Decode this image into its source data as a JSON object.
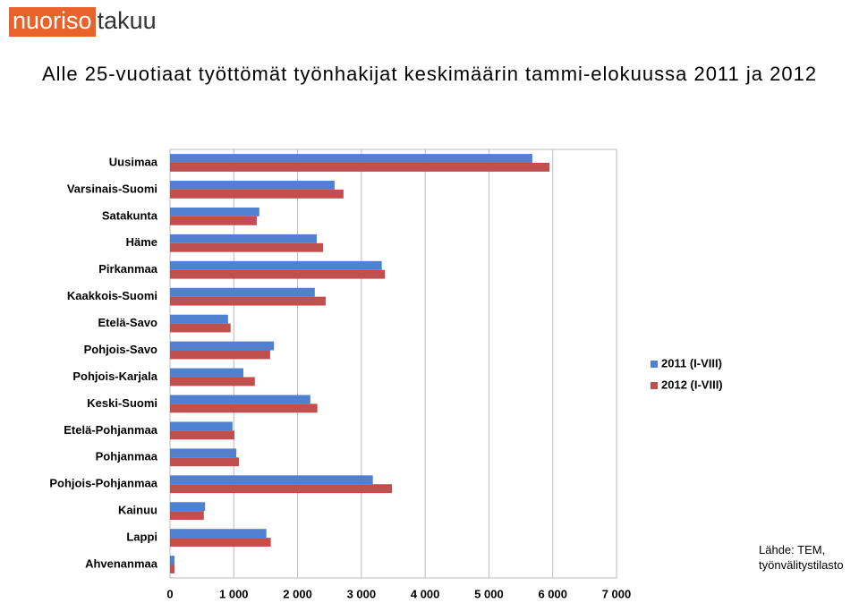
{
  "logo": {
    "part1": "nuoriso",
    "part2": "takuu"
  },
  "source": [
    "Lähde: TEM,",
    "työnvälitystilasto"
  ],
  "chart_data": {
    "type": "bar",
    "orientation": "horizontal",
    "title": "Alle 25-vuotiaat työttömät työnhakijat keskimäärin tammi-elokuussa 2011 ja 2012",
    "categories": [
      "Uusimaa",
      "Varsinais-Suomi",
      "Satakunta",
      "Häme",
      "Pirkanmaa",
      "Kaakkois-Suomi",
      "Etelä-Savo",
      "Pohjois-Savo",
      "Pohjois-Karjala",
      "Keski-Suomi",
      "Etelä-Pohjanmaa",
      "Pohjanmaa",
      "Pohjois-Pohjanmaa",
      "Kainuu",
      "Lappi",
      "Ahvenanmaa"
    ],
    "series": [
      {
        "name": "2011 (I-VIII)",
        "color": "#4f81d0",
        "values": [
          5680,
          2580,
          1400,
          2300,
          3320,
          2270,
          910,
          1630,
          1150,
          2200,
          980,
          1040,
          3180,
          550,
          1510,
          70
        ]
      },
      {
        "name": "2012 (I-VIII)",
        "color": "#c0504d",
        "values": [
          5950,
          2720,
          1360,
          2400,
          3370,
          2440,
          950,
          1570,
          1330,
          2310,
          1010,
          1080,
          3480,
          530,
          1580,
          70
        ]
      }
    ],
    "xlim": [
      0,
      7000
    ],
    "xticks": [
      0,
      {
        "value": 1000,
        "label": "1 000"
      },
      {
        "value": 2000,
        "label": "2 000"
      },
      {
        "value": 3000,
        "label": "3 000"
      },
      {
        "value": 4000,
        "label": "4 000"
      },
      {
        "value": 5000,
        "label": "5 000"
      },
      {
        "value": 6000,
        "label": "6 000"
      },
      {
        "value": 7000,
        "label": "7 000"
      }
    ],
    "grid": true,
    "legend": "right"
  }
}
